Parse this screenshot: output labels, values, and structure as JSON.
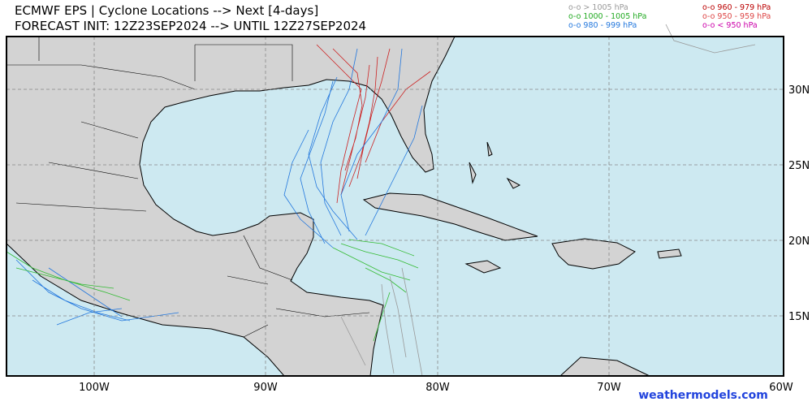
{
  "header": {
    "title_line1": "ECMWF EPS | Cyclone Locations --> Next [4-days]",
    "title_line2": "FORECAST INIT: 12Z23SEP2024 --> UNTIL 12Z27SEP2024"
  },
  "legend": {
    "entries": [
      {
        "label": "o-o > 1005 hPa",
        "color": "#999999"
      },
      {
        "label": "o-o 1000 - 1005 hPa",
        "color": "#22aa22"
      },
      {
        "label": "o-o 980 - 999 hPa",
        "color": "#2277dd"
      },
      {
        "label": "o-o 960 - 979 hPa",
        "color": "#bb0000"
      },
      {
        "label": "o-o 950 - 959 hPa",
        "color": "#dd4444"
      },
      {
        "label": "o-o < 950 hPa",
        "color": "#cc00aa"
      }
    ]
  },
  "axes": {
    "lon_labels": [
      "100W",
      "90W",
      "80W",
      "70W",
      "60W"
    ],
    "lat_labels": [
      "30N",
      "25N",
      "20N",
      "15N"
    ]
  },
  "watermark": "weathermodels.com"
}
